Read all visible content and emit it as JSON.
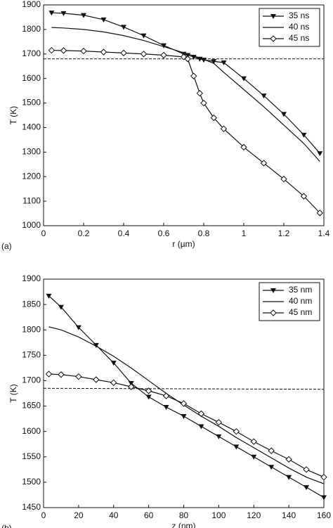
{
  "chart_data": [
    {
      "type": "line",
      "panel_label": "(a)",
      "x_label": "r (µm)",
      "y_label": "T (K)",
      "legend": "upper right",
      "x": [
        0.04,
        0.1,
        0.2,
        0.3,
        0.4,
        0.5,
        0.6,
        0.7,
        0.72,
        0.75,
        0.78,
        0.8,
        0.85,
        0.9,
        1.0,
        1.1,
        1.2,
        1.3,
        1.38
      ],
      "series": [
        {
          "name": "35 ns",
          "color": "#111111",
          "marker": "triangle-down",
          "values": [
            1868,
            1866,
            1858,
            1840,
            1810,
            1775,
            1735,
            1700,
            1695,
            1688,
            1680,
            1676,
            1670,
            1665,
            1600,
            1530,
            1455,
            1370,
            1295
          ]
        },
        {
          "name": "40 ns",
          "color": "#111111",
          "marker": "none",
          "values": [
            1808,
            1806,
            1800,
            1790,
            1775,
            1755,
            1730,
            1705,
            1700,
            1692,
            1684,
            1678,
            1662,
            1625,
            1555,
            1485,
            1410,
            1335,
            1262
          ]
        },
        {
          "name": "45 ns",
          "color": "#111111",
          "marker": "diamond",
          "values": [
            1715,
            1714,
            1712,
            1708,
            1704,
            1700,
            1695,
            1688,
            1680,
            1610,
            1540,
            1500,
            1440,
            1395,
            1320,
            1255,
            1190,
            1120,
            1052
          ]
        }
      ],
      "refline": {
        "x": [
          0,
          1.4
        ],
        "y": [
          1680,
          1680
        ],
        "style": "dashed"
      },
      "xlim": [
        0,
        1.4
      ],
      "xticks": [
        0,
        0.2,
        0.4,
        0.6,
        0.8,
        1,
        1.2,
        1.4
      ],
      "ylim": [
        1000,
        1900
      ],
      "yticks": [
        1000,
        1100,
        1200,
        1300,
        1400,
        1500,
        1600,
        1700,
        1800,
        1900
      ],
      "grid": false
    },
    {
      "type": "line",
      "panel_label": "(b)",
      "x_label": "z (nm)",
      "y_label": "T (K)",
      "legend": "upper right",
      "x": [
        3,
        10,
        20,
        30,
        40,
        50,
        60,
        70,
        80,
        90,
        100,
        110,
        120,
        130,
        140,
        150,
        160
      ],
      "series": [
        {
          "name": "35 nm",
          "color": "#111111",
          "marker": "triangle-down",
          "values": [
            1867,
            1845,
            1805,
            1770,
            1735,
            1695,
            1668,
            1648,
            1630,
            1610,
            1590,
            1570,
            1550,
            1530,
            1510,
            1490,
            1470
          ]
        },
        {
          "name": "40 nm",
          "color": "#111111",
          "marker": "none",
          "values": [
            1806,
            1800,
            1786,
            1768,
            1748,
            1725,
            1700,
            1675,
            1652,
            1630,
            1610,
            1588,
            1568,
            1548,
            1528,
            1510,
            1497
          ]
        },
        {
          "name": "45 nm",
          "color": "#111111",
          "marker": "diamond",
          "values": [
            1713,
            1712,
            1708,
            1702,
            1696,
            1688,
            1680,
            1670,
            1655,
            1635,
            1618,
            1600,
            1580,
            1562,
            1545,
            1525,
            1510
          ]
        }
      ],
      "refline": {
        "x": [
          0,
          160
        ],
        "y": [
          1685,
          1683
        ],
        "style": "dashed"
      },
      "xlim": [
        0,
        160
      ],
      "xticks": [
        0,
        20,
        40,
        60,
        80,
        100,
        120,
        140,
        160
      ],
      "ylim": [
        1450,
        1900
      ],
      "yticks": [
        1450,
        1500,
        1550,
        1600,
        1650,
        1700,
        1750,
        1800,
        1850,
        1900
      ],
      "grid": false
    }
  ]
}
